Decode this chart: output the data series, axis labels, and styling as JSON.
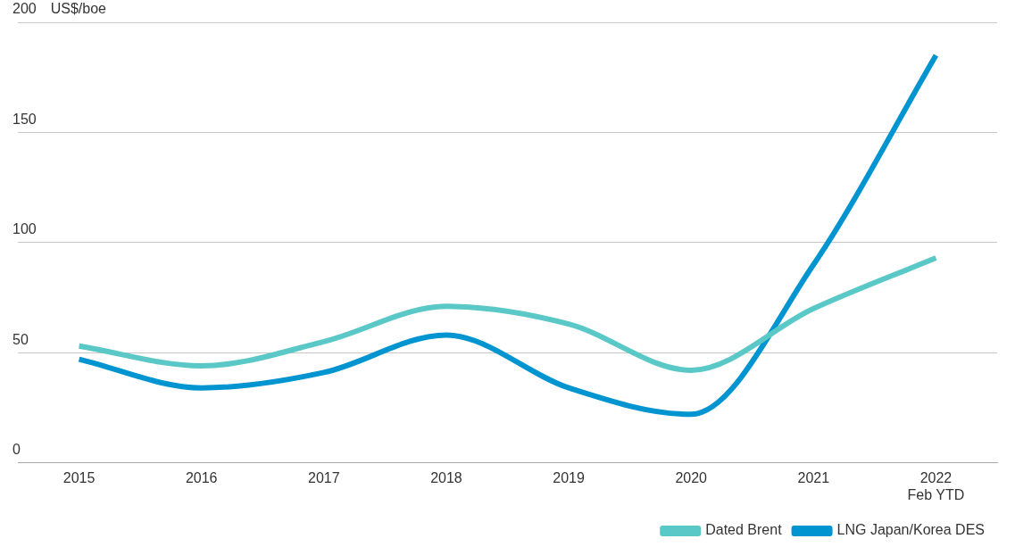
{
  "chart_data": {
    "type": "line",
    "ylabel": "US$/boe",
    "categories": [
      "2015",
      "2016",
      "2017",
      "2018",
      "2019",
      "2020",
      "2021",
      "2022\nFeb YTD"
    ],
    "series": [
      {
        "name": "Dated Brent",
        "color": "#5bc8c8",
        "values": [
          53,
          44,
          55,
          71,
          63,
          42,
          70,
          93
        ]
      },
      {
        "name": "LNG Japan/Korea DES",
        "color": "#0095d0",
        "values": [
          47,
          34,
          41,
          58,
          34,
          22,
          90,
          185
        ]
      }
    ],
    "ylim": [
      0,
      200
    ],
    "yticks": [
      0,
      50,
      100,
      150,
      200
    ],
    "grid": "y",
    "legend": "bottom right",
    "marker": "none",
    "line_style": "solid"
  }
}
